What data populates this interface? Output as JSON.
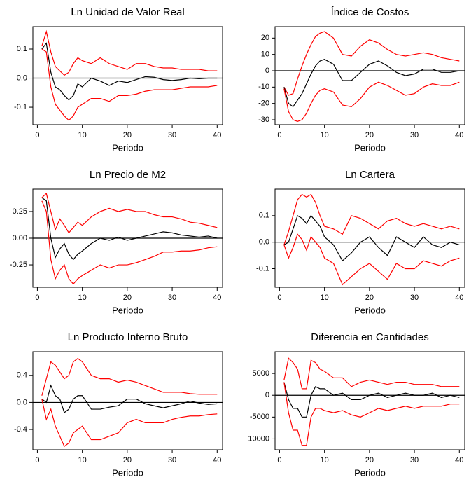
{
  "chart_data": [
    {
      "type": "line",
      "title": "Ln Unidad de Valor Real",
      "xlabel": "Periodo",
      "x": [
        1,
        2,
        3,
        4,
        5,
        6,
        7,
        8,
        9,
        10,
        12,
        14,
        16,
        18,
        20,
        22,
        24,
        26,
        28,
        30,
        32,
        34,
        36,
        38,
        40
      ],
      "series": [
        {
          "color": "#ff0000",
          "values": [
            0.11,
            0.16,
            0.09,
            0.04,
            0.025,
            0.01,
            0.02,
            0.05,
            0.07,
            0.06,
            0.05,
            0.07,
            0.05,
            0.04,
            0.03,
            0.05,
            0.05,
            0.04,
            0.035,
            0.035,
            0.03,
            0.03,
            0.03,
            0.025,
            0.025
          ]
        },
        {
          "color": "#000000",
          "values": [
            0.1,
            0.12,
            0.02,
            -0.03,
            -0.04,
            -0.06,
            -0.075,
            -0.06,
            -0.02,
            -0.03,
            0.0,
            -0.01,
            -0.025,
            -0.01,
            -0.015,
            -0.005,
            0.005,
            0.003,
            -0.005,
            -0.008,
            -0.005,
            0.0,
            -0.002,
            0.0,
            0.0
          ]
        },
        {
          "color": "#ff0000",
          "values": [
            0.1,
            0.09,
            -0.03,
            -0.09,
            -0.11,
            -0.13,
            -0.145,
            -0.13,
            -0.1,
            -0.09,
            -0.07,
            -0.07,
            -0.08,
            -0.06,
            -0.06,
            -0.055,
            -0.045,
            -0.04,
            -0.04,
            -0.04,
            -0.035,
            -0.03,
            -0.03,
            -0.03,
            -0.025
          ]
        }
      ],
      "xlim": [
        -1,
        41.2
      ],
      "ylim": [
        -0.16,
        0.177
      ],
      "xticks": [
        0,
        10,
        20,
        30,
        40
      ],
      "yticks": [
        0.1,
        {
          "value": 0,
          "label": "0.0"
        },
        -0.1
      ]
    },
    {
      "type": "line",
      "title": "Índice de Costos",
      "xlabel": "Periodo",
      "x": [
        1,
        2,
        3,
        4,
        5,
        6,
        7,
        8,
        9,
        10,
        12,
        14,
        16,
        18,
        20,
        22,
        24,
        26,
        28,
        30,
        32,
        34,
        36,
        38,
        40
      ],
      "series": [
        {
          "color": "#ff0000",
          "values": [
            -10,
            -15,
            -14,
            -5,
            3,
            10,
            16,
            21,
            23,
            24,
            20,
            10,
            9,
            15,
            19,
            17,
            13,
            10,
            9,
            10,
            11,
            10,
            8,
            7,
            6
          ]
        },
        {
          "color": "#000000",
          "values": [
            -10,
            -20,
            -22,
            -18,
            -14,
            -8,
            -2,
            3,
            6,
            7,
            4,
            -6,
            -6,
            -1,
            4,
            6,
            3,
            -1,
            -3,
            -2,
            1,
            1,
            -1,
            -1,
            0
          ]
        },
        {
          "color": "#ff0000",
          "values": [
            -11,
            -25,
            -30,
            -31,
            -30,
            -26,
            -20,
            -15,
            -12,
            -11,
            -13,
            -21,
            -22,
            -17,
            -10,
            -7,
            -9,
            -12,
            -15,
            -14,
            -10,
            -8,
            -9,
            -9,
            -7
          ]
        }
      ],
      "xlim": [
        -1,
        41.2
      ],
      "ylim": [
        -33,
        27
      ],
      "xticks": [
        0,
        10,
        20,
        30,
        40
      ],
      "yticks": [
        20,
        10,
        0,
        -10,
        -20,
        -30
      ]
    },
    {
      "type": "line",
      "title": "Ln Precio de M2",
      "xlabel": "Periodo",
      "x": [
        1,
        2,
        3,
        4,
        5,
        6,
        7,
        8,
        9,
        10,
        12,
        14,
        16,
        18,
        20,
        22,
        24,
        26,
        28,
        30,
        32,
        34,
        36,
        38,
        40
      ],
      "series": [
        {
          "color": "#ff0000",
          "values": [
            0.38,
            0.42,
            0.25,
            0.08,
            0.18,
            0.12,
            0.05,
            0.1,
            0.15,
            0.12,
            0.2,
            0.25,
            0.28,
            0.25,
            0.27,
            0.25,
            0.25,
            0.22,
            0.2,
            0.2,
            0.18,
            0.15,
            0.14,
            0.12,
            0.1
          ]
        },
        {
          "color": "#000000",
          "values": [
            0.38,
            0.35,
            0.0,
            -0.18,
            -0.1,
            -0.05,
            -0.15,
            -0.2,
            -0.15,
            -0.12,
            -0.05,
            0.0,
            -0.02,
            0.01,
            -0.02,
            0.0,
            0.02,
            0.04,
            0.06,
            0.05,
            0.03,
            0.02,
            0.01,
            0.02,
            0.0
          ]
        },
        {
          "color": "#ff0000",
          "values": [
            0.35,
            0.25,
            -0.2,
            -0.38,
            -0.3,
            -0.25,
            -0.38,
            -0.43,
            -0.38,
            -0.35,
            -0.3,
            -0.25,
            -0.28,
            -0.25,
            -0.25,
            -0.23,
            -0.2,
            -0.17,
            -0.13,
            -0.13,
            -0.12,
            -0.12,
            -0.11,
            -0.09,
            -0.08
          ]
        }
      ],
      "xlim": [
        -1,
        41.2
      ],
      "ylim": [
        -0.46,
        0.46
      ],
      "xticks": [
        0,
        10,
        20,
        30,
        40
      ],
      "yticks": [
        {
          "value": 0.25,
          "label": "0.25"
        },
        {
          "value": 0,
          "label": "0.00"
        },
        {
          "value": -0.25,
          "label": "-0.25"
        }
      ]
    },
    {
      "type": "line",
      "title": "Ln Cartera",
      "xlabel": "Periodo",
      "x": [
        1,
        2,
        3,
        4,
        5,
        6,
        7,
        8,
        9,
        10,
        12,
        14,
        16,
        18,
        20,
        22,
        24,
        26,
        28,
        30,
        32,
        34,
        36,
        38,
        40
      ],
      "series": [
        {
          "color": "#ff0000",
          "values": [
            -0.01,
            0.04,
            0.1,
            0.16,
            0.18,
            0.17,
            0.18,
            0.15,
            0.1,
            0.06,
            0.05,
            0.03,
            0.1,
            0.09,
            0.07,
            0.05,
            0.08,
            0.09,
            0.07,
            0.06,
            0.07,
            0.06,
            0.05,
            0.06,
            0.05
          ]
        },
        {
          "color": "#000000",
          "values": [
            -0.01,
            0.0,
            0.05,
            0.1,
            0.09,
            0.07,
            0.1,
            0.08,
            0.06,
            0.02,
            -0.01,
            -0.07,
            -0.04,
            0.0,
            0.02,
            -0.02,
            -0.05,
            0.02,
            0.0,
            -0.02,
            0.02,
            -0.01,
            -0.02,
            0.0,
            -0.01
          ]
        },
        {
          "color": "#ff0000",
          "values": [
            -0.01,
            -0.06,
            -0.02,
            0.03,
            0.01,
            -0.03,
            0.02,
            0.0,
            -0.02,
            -0.06,
            -0.08,
            -0.16,
            -0.13,
            -0.1,
            -0.08,
            -0.11,
            -0.14,
            -0.08,
            -0.1,
            -0.1,
            -0.07,
            -0.08,
            -0.09,
            -0.07,
            -0.06
          ]
        }
      ],
      "xlim": [
        -1,
        41.2
      ],
      "ylim": [
        -0.17,
        0.2
      ],
      "xticks": [
        0,
        10,
        20,
        30,
        40
      ],
      "yticks": [
        0.1,
        {
          "value": 0,
          "label": "0.0"
        },
        -0.1
      ]
    },
    {
      "type": "line",
      "title": "Ln Producto Interno Bruto",
      "xlabel": "Periodo",
      "x": [
        1,
        2,
        3,
        4,
        5,
        6,
        7,
        8,
        9,
        10,
        12,
        14,
        16,
        18,
        20,
        22,
        24,
        26,
        28,
        30,
        32,
        34,
        36,
        38,
        40
      ],
      "series": [
        {
          "color": "#ff0000",
          "values": [
            0.1,
            0.35,
            0.6,
            0.55,
            0.45,
            0.35,
            0.4,
            0.6,
            0.65,
            0.6,
            0.4,
            0.35,
            0.35,
            0.3,
            0.33,
            0.3,
            0.25,
            0.2,
            0.15,
            0.15,
            0.15,
            0.13,
            0.12,
            0.12,
            0.12
          ]
        },
        {
          "color": "#000000",
          "values": [
            0.05,
            0.0,
            0.25,
            0.1,
            0.05,
            -0.15,
            -0.1,
            0.05,
            0.1,
            0.1,
            -0.1,
            -0.1,
            -0.07,
            -0.05,
            0.05,
            0.05,
            -0.02,
            -0.05,
            -0.08,
            -0.05,
            -0.02,
            0.02,
            -0.01,
            -0.03,
            -0.02
          ]
        },
        {
          "color": "#ff0000",
          "values": [
            0.05,
            -0.25,
            -0.1,
            -0.35,
            -0.5,
            -0.65,
            -0.6,
            -0.45,
            -0.4,
            -0.35,
            -0.55,
            -0.55,
            -0.5,
            -0.45,
            -0.3,
            -0.25,
            -0.3,
            -0.3,
            -0.3,
            -0.25,
            -0.22,
            -0.2,
            -0.2,
            -0.18,
            -0.17
          ]
        }
      ],
      "xlim": [
        -1,
        41.2
      ],
      "ylim": [
        -0.7,
        0.75
      ],
      "xticks": [
        0,
        10,
        20,
        30,
        40
      ],
      "yticks": [
        0.4,
        {
          "value": 0,
          "label": "0.0"
        },
        -0.4
      ]
    },
    {
      "type": "line",
      "title": "Diferencia en Cantidades",
      "xlabel": "Periodo",
      "x": [
        1,
        2,
        3,
        4,
        5,
        6,
        7,
        8,
        9,
        10,
        12,
        14,
        16,
        18,
        20,
        22,
        24,
        26,
        28,
        30,
        32,
        34,
        36,
        38,
        40
      ],
      "series": [
        {
          "color": "#ff0000",
          "values": [
            3500,
            8500,
            7500,
            6000,
            1500,
            1500,
            8000,
            7500,
            6000,
            5500,
            4000,
            4000,
            2000,
            3000,
            3500,
            3000,
            2500,
            3000,
            3000,
            2500,
            2500,
            2500,
            2000,
            2000,
            2000
          ]
        },
        {
          "color": "#000000",
          "values": [
            3000,
            -1000,
            -3000,
            -3000,
            -5000,
            -5000,
            0,
            2000,
            1500,
            1500,
            0,
            500,
            -1000,
            -1000,
            0,
            500,
            -500,
            0,
            500,
            0,
            0,
            500,
            -500,
            0,
            -500
          ]
        },
        {
          "color": "#ff0000",
          "values": [
            3000,
            -4000,
            -8000,
            -8000,
            -11500,
            -11500,
            -5000,
            -3000,
            -3000,
            -3500,
            -4000,
            -3500,
            -4500,
            -5000,
            -4000,
            -3000,
            -3500,
            -3000,
            -2500,
            -3000,
            -2500,
            -2500,
            -2500,
            -2000,
            -2000
          ]
        }
      ],
      "xlim": [
        -1,
        41.2
      ],
      "ylim": [
        -12500,
        10000
      ],
      "xticks": [
        0,
        10,
        20,
        30,
        40
      ],
      "yticks": [
        5000,
        0,
        -5000,
        -10000
      ]
    }
  ]
}
